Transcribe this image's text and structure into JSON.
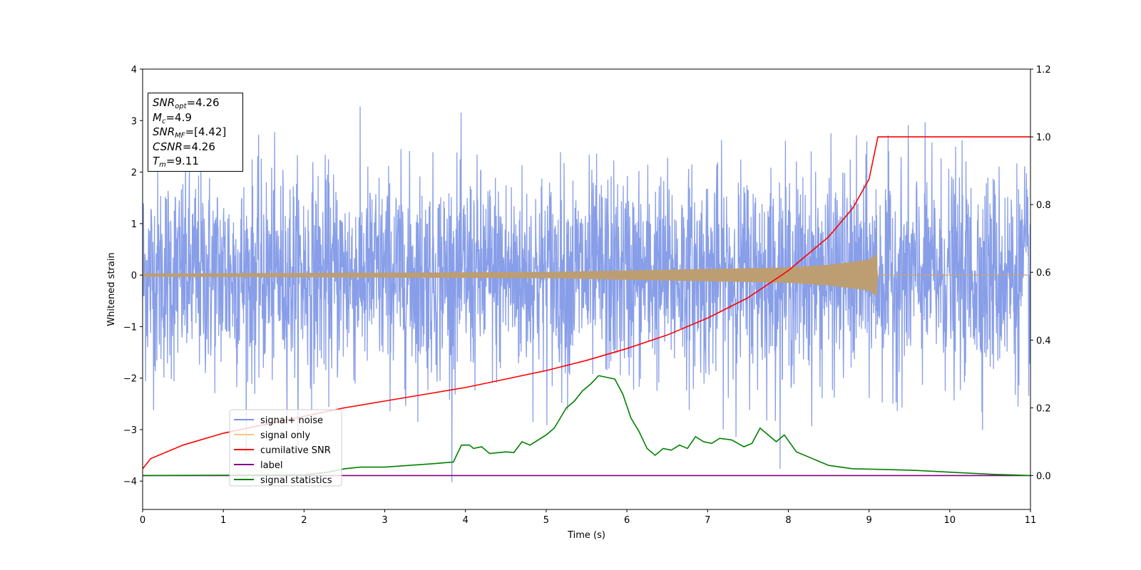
{
  "chart_data": {
    "type": "line",
    "xlabel": "Time (s)",
    "ylabel": "Whitened strain",
    "xlim": [
      0,
      11
    ],
    "ylim": [
      -4.55,
      4
    ],
    "y2lim": [
      -0.1,
      1.2
    ],
    "xticks": [
      "0",
      "1",
      "2",
      "3",
      "4",
      "5",
      "6",
      "7",
      "8",
      "9",
      "10",
      "11"
    ],
    "yticks": [
      "4",
      "3",
      "2",
      "1",
      "0",
      "−1",
      "−2",
      "−3",
      "−4"
    ],
    "y2ticks": [
      "1.2",
      "1.0",
      "0.8",
      "0.6",
      "0.4",
      "0.2",
      "0.0"
    ],
    "grid": false,
    "legend_position": "lower-left",
    "series": [
      {
        "name": "signal+ noise",
        "color": "#7b93e6",
        "axis": "left",
        "description": "noise about zero, amplitude mostly within ±2.5, peaks near 3.6",
        "amplitude_envelope": 1.0,
        "peak_max": 3.62,
        "peak_min": -4.15
      },
      {
        "name": "signal only",
        "color": "#f5c78a",
        "axis": "left",
        "chirp_end_time": 9.11,
        "envelope": [
          [
            0,
            0.03
          ],
          [
            5,
            0.06
          ],
          [
            7,
            0.12
          ],
          [
            8,
            0.15
          ],
          [
            8.5,
            0.2
          ],
          [
            9.0,
            0.3
          ],
          [
            9.1,
            0.42
          ],
          [
            9.11,
            0.0
          ],
          [
            11,
            0.0
          ]
        ]
      },
      {
        "name": "cumilative SNR",
        "color": "#ff0000",
        "axis": "right",
        "points": [
          [
            0,
            0.02
          ],
          [
            0.1,
            0.05
          ],
          [
            0.5,
            0.09
          ],
          [
            1,
            0.125
          ],
          [
            1.5,
            0.15
          ],
          [
            2,
            0.175
          ],
          [
            2.5,
            0.2
          ],
          [
            3,
            0.22
          ],
          [
            3.5,
            0.24
          ],
          [
            4,
            0.26
          ],
          [
            4.5,
            0.285
          ],
          [
            5,
            0.31
          ],
          [
            5.5,
            0.34
          ],
          [
            6,
            0.375
          ],
          [
            6.5,
            0.415
          ],
          [
            7,
            0.465
          ],
          [
            7.5,
            0.525
          ],
          [
            8,
            0.605
          ],
          [
            8.5,
            0.705
          ],
          [
            8.8,
            0.79
          ],
          [
            9.0,
            0.875
          ],
          [
            9.11,
            1.0
          ],
          [
            11,
            1.0
          ]
        ]
      },
      {
        "name": "label",
        "color": "#800080",
        "axis": "right",
        "points": [
          [
            0,
            0.0
          ],
          [
            11,
            0.0
          ]
        ]
      },
      {
        "name": "signal statistics",
        "color": "#008000",
        "axis": "right",
        "points": [
          [
            0,
            0.0
          ],
          [
            1,
            0.001
          ],
          [
            2,
            0.002
          ],
          [
            2.3,
            0.01
          ],
          [
            2.5,
            0.02
          ],
          [
            2.7,
            0.025
          ],
          [
            3,
            0.025
          ],
          [
            3.3,
            0.03
          ],
          [
            3.6,
            0.035
          ],
          [
            3.85,
            0.04
          ],
          [
            3.95,
            0.09
          ],
          [
            4.05,
            0.09
          ],
          [
            4.1,
            0.08
          ],
          [
            4.2,
            0.085
          ],
          [
            4.3,
            0.065
          ],
          [
            4.5,
            0.07
          ],
          [
            4.6,
            0.068
          ],
          [
            4.7,
            0.1
          ],
          [
            4.8,
            0.09
          ],
          [
            5.0,
            0.12
          ],
          [
            5.1,
            0.14
          ],
          [
            5.15,
            0.16
          ],
          [
            5.25,
            0.2
          ],
          [
            5.35,
            0.22
          ],
          [
            5.45,
            0.25
          ],
          [
            5.55,
            0.27
          ],
          [
            5.65,
            0.295
          ],
          [
            5.75,
            0.29
          ],
          [
            5.85,
            0.285
          ],
          [
            5.95,
            0.24
          ],
          [
            6.05,
            0.17
          ],
          [
            6.15,
            0.13
          ],
          [
            6.25,
            0.08
          ],
          [
            6.35,
            0.06
          ],
          [
            6.45,
            0.08
          ],
          [
            6.55,
            0.075
          ],
          [
            6.65,
            0.09
          ],
          [
            6.75,
            0.08
          ],
          [
            6.85,
            0.115
          ],
          [
            6.95,
            0.1
          ],
          [
            7.05,
            0.095
          ],
          [
            7.15,
            0.11
          ],
          [
            7.3,
            0.105
          ],
          [
            7.45,
            0.085
          ],
          [
            7.55,
            0.095
          ],
          [
            7.65,
            0.14
          ],
          [
            7.75,
            0.12
          ],
          [
            7.85,
            0.1
          ],
          [
            7.95,
            0.12
          ],
          [
            8.1,
            0.07
          ],
          [
            8.3,
            0.05
          ],
          [
            8.5,
            0.03
          ],
          [
            8.8,
            0.02
          ],
          [
            9.2,
            0.018
          ],
          [
            9.6,
            0.015
          ],
          [
            10,
            0.01
          ],
          [
            10.5,
            0.004
          ],
          [
            11,
            0.0
          ]
        ]
      }
    ]
  },
  "info_box": {
    "snr_opt_value": "=4.26",
    "mc_value": "=4.9",
    "snr_mf_value": "=[4.42]",
    "csnr_label": "CSNR",
    "csnr_value": "=4.26",
    "tm_value": "=9.11"
  }
}
